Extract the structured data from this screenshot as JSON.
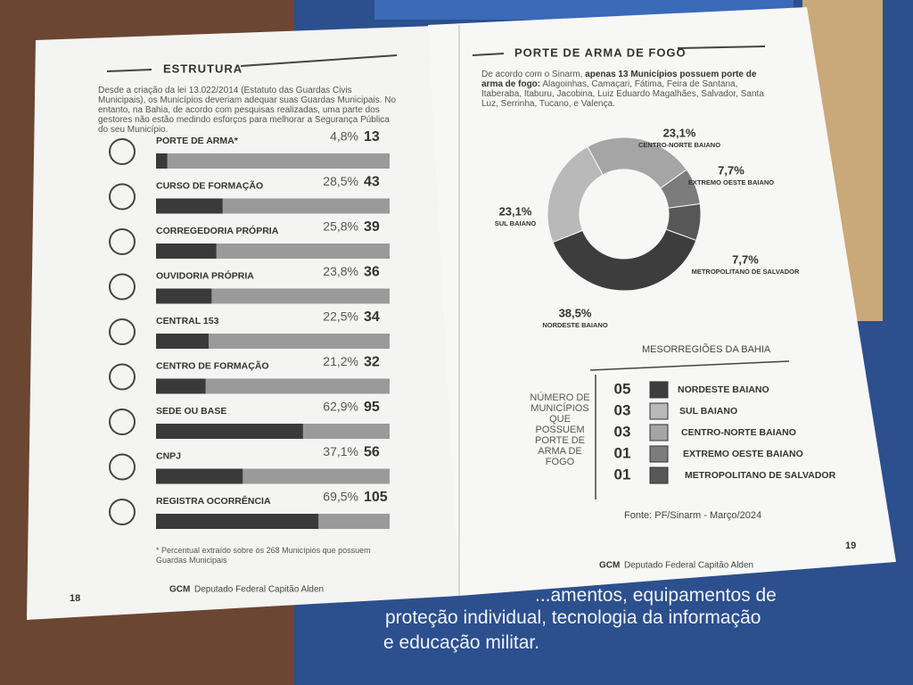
{
  "left_page": {
    "title": "ESTRUTURA",
    "intro": "Desde a criação da lei 13.022/2014 (Estatuto das Guardas Civis Municipais), os Municípios deveriam adequar suas Guardas Municipais. No entanto, na Bahia, de acordo com pesquisas realizadas, uma parte dos gestores não estão medindo esforços para melhorar a Segurança Pública do seu Município.",
    "footnote": "* Percentual extraído sobre os 268 Municípios que possuem Guardas Municipais",
    "page_number": "18",
    "footer_brand": "GCM",
    "footer_text": "Deputado Federal Capitão Alden"
  },
  "right_page": {
    "title": "PORTE DE ARMA DE FOGO",
    "intro_start": "De acordo com o Sinarm, ",
    "intro_bold": "apenas 13 Municípios possuem porte de arma de fogo:",
    "intro_end": " Alagoinhas, Camaçari, Fátima, Feira de Santana, Itaberaba, Itaburu, Jacobina, Luiz Eduardo Magalhães, Salvador, Santa Luz, Serrinha, Tucano, e Valença.",
    "legend_title": "MESORREGIÕES DA BAHIA",
    "legend_side": "NÚMERO DE MUNICÍPIOS QUE POSSUEM PORTE DE ARMA DE FOGO",
    "legend_counts": [
      "05",
      "03",
      "03",
      "01",
      "01"
    ],
    "source": "Fonte: PF/Sinarm - Março/2024",
    "page_number": "19",
    "footer_brand": "GCM",
    "footer_text": "Deputado Federal Capitão Alden"
  },
  "background": {
    "line1": "...amentos, equipamentos de",
    "line2": "proteção individual, tecnologia da informação",
    "line3": "e educação militar."
  },
  "chart_data": [
    {
      "type": "bar",
      "orientation": "horizontal",
      "categories": [
        "PORTE DE ARMA*",
        "CURSO DE FORMAÇÃO",
        "CORREGEDORIA PRÓPRIA",
        "OUVIDORIA PRÓPRIA",
        "CENTRAL 153",
        "CENTRO DE FORMAÇÃO",
        "SEDE OU BASE",
        "CNPJ",
        "REGISTRA OCORRÊNCIA"
      ],
      "values": [
        4.8,
        28.5,
        25.8,
        23.8,
        22.5,
        21.2,
        62.9,
        37.1,
        69.5
      ],
      "value_labels": [
        "4,8%",
        "28,5%",
        "25,8%",
        "23,8%",
        "22,5%",
        "21,2%",
        "62,9%",
        "37,1%",
        "69,5%"
      ],
      "counts": [
        13,
        43,
        39,
        36,
        34,
        32,
        95,
        56,
        105
      ],
      "xlim": [
        0,
        100
      ],
      "color": "#3a3a3a",
      "track_color": "#9a9a9a"
    },
    {
      "type": "pie",
      "donut": true,
      "categories": [
        "NORDESTE BAIANO",
        "SUL BAIANO",
        "CENTRO-NORTE BAIANO",
        "EXTREMO OESTE BAIANO",
        "METROPOLITANO DE SALVADOR"
      ],
      "values": [
        38.5,
        23.1,
        23.1,
        7.7,
        7.7
      ],
      "value_labels": [
        "38,5%",
        "23,1%",
        "23,1%",
        "7,7%",
        "7,7%"
      ],
      "colors": [
        "#3d3d3d",
        "#b9b9b9",
        "#a5a5a5",
        "#7c7c7c",
        "#575757"
      ]
    }
  ]
}
